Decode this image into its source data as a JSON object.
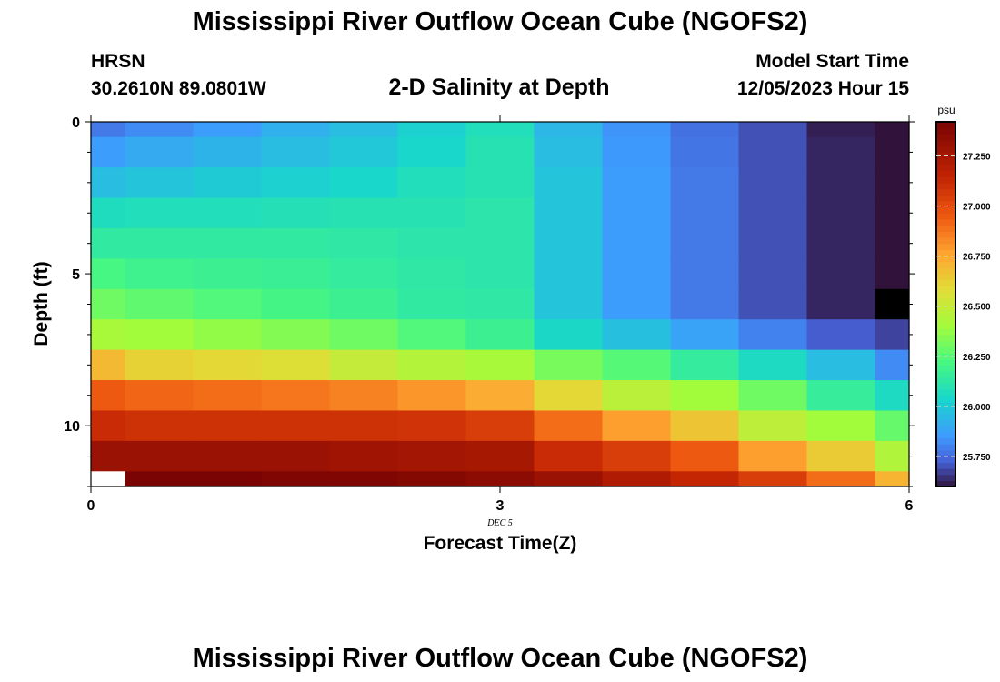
{
  "header": {
    "title": "Mississippi River Outflow Ocean Cube (NGOFS2)",
    "station": "HRSN",
    "coordinates": "30.2610N  89.0801W",
    "subtitle": "2-D Salinity at Depth",
    "model_start_label": "Model Start Time",
    "model_start_value": "12/05/2023 Hour 15"
  },
  "footer": {
    "title": "Mississippi River Outflow Ocean Cube (NGOFS2)"
  },
  "chart_data": {
    "type": "heatmap",
    "title": "2-D Salinity at Depth",
    "xlabel": "Forecast Time(Z)",
    "ylabel": "Depth (ft)",
    "x_date_label": "DEC 5",
    "xlim": [
      0,
      6
    ],
    "ylim": [
      12,
      0
    ],
    "x_ticks": [
      0,
      3,
      6
    ],
    "y_ticks": [
      0,
      5,
      10
    ],
    "x_edges": [
      0,
      0.25,
      0.75,
      1.25,
      1.75,
      2.25,
      2.75,
      3.25,
      3.75,
      4.25,
      4.75,
      5.25,
      5.75,
      6
    ],
    "y_edges": [
      0,
      0.5,
      1.5,
      2.5,
      3.5,
      4.5,
      5.5,
      6.5,
      7.5,
      8.5,
      9.5,
      10.5,
      11.5,
      12
    ],
    "colorbar": {
      "label": "psu",
      "min": 25.6,
      "max": 27.42,
      "ticks": [
        "25.750",
        "26.000",
        "26.250",
        "26.500",
        "26.750",
        "27.000",
        "27.250"
      ],
      "tick_values": [
        25.75,
        26.0,
        26.25,
        26.5,
        26.75,
        27.0,
        27.25
      ]
    },
    "salinity_psu": [
      [
        25.78,
        25.82,
        25.86,
        25.92,
        25.96,
        26.02,
        26.08,
        25.94,
        25.84,
        25.76,
        25.7,
        25.62,
        25.05
      ],
      [
        25.86,
        25.9,
        25.93,
        25.96,
        25.99,
        26.04,
        26.1,
        25.96,
        25.85,
        25.77,
        25.7,
        25.63,
        25.05
      ],
      [
        25.96,
        25.98,
        26.0,
        26.02,
        26.04,
        26.08,
        26.1,
        25.98,
        25.86,
        25.78,
        25.7,
        25.63,
        25.05
      ],
      [
        26.07,
        26.08,
        26.08,
        26.09,
        26.1,
        26.1,
        26.12,
        25.98,
        25.86,
        25.78,
        25.7,
        25.63,
        25.05
      ],
      [
        26.14,
        26.14,
        26.14,
        26.14,
        26.13,
        26.12,
        26.12,
        25.98,
        25.86,
        25.78,
        25.7,
        25.63,
        25.05
      ],
      [
        26.22,
        26.19,
        26.18,
        26.17,
        26.15,
        26.13,
        26.12,
        25.98,
        25.86,
        25.78,
        25.7,
        25.63,
        25.05
      ],
      [
        26.3,
        26.27,
        26.24,
        26.21,
        26.18,
        26.14,
        26.13,
        25.98,
        25.86,
        25.78,
        25.7,
        25.63,
        24.5
      ],
      [
        26.42,
        26.4,
        26.37,
        26.34,
        26.3,
        26.24,
        26.18,
        26.05,
        25.97,
        25.88,
        25.8,
        25.72,
        25.68
      ],
      [
        26.7,
        26.62,
        26.6,
        26.57,
        26.5,
        26.45,
        26.42,
        26.32,
        26.25,
        26.15,
        26.06,
        25.96,
        25.82
      ],
      [
        26.95,
        26.92,
        26.9,
        26.88,
        26.85,
        26.8,
        26.74,
        26.6,
        26.47,
        26.4,
        26.3,
        26.16,
        26.06
      ],
      [
        27.12,
        27.1,
        27.1,
        27.1,
        27.1,
        27.09,
        27.05,
        26.9,
        26.78,
        26.66,
        26.48,
        26.4,
        26.28
      ],
      [
        27.3,
        27.3,
        27.3,
        27.3,
        27.28,
        27.27,
        27.25,
        27.12,
        27.05,
        26.95,
        26.78,
        26.64,
        26.44
      ],
      [
        null,
        27.42,
        27.42,
        27.4,
        27.4,
        27.38,
        27.35,
        27.3,
        27.22,
        27.14,
        27.05,
        26.9,
        26.72
      ]
    ]
  }
}
